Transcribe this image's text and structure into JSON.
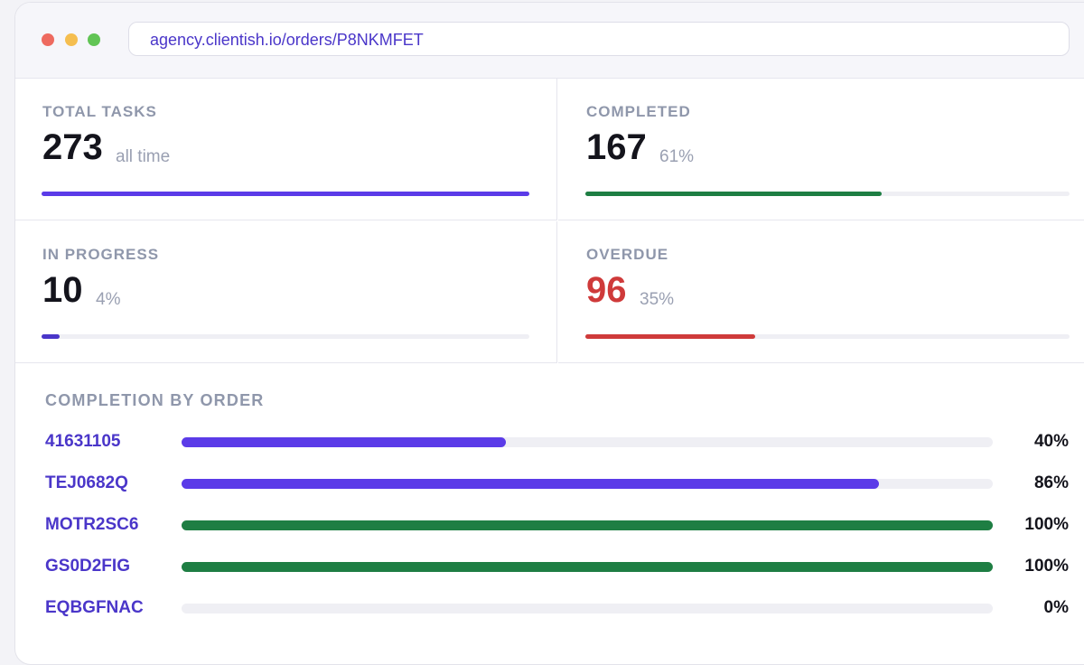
{
  "browser": {
    "url": "agency.clientish.io/orders/P8NKMFET"
  },
  "stats": [
    {
      "label": "TOTAL TASKS",
      "value": 273,
      "note": "all time",
      "color": "#5b3be8",
      "number_color": "#14141c"
    },
    {
      "label": "COMPLETED",
      "value": 167,
      "note": "61%",
      "color": "#1e7e43",
      "number_color": "#14141c"
    },
    {
      "label": "IN PROGRESS",
      "value": 10,
      "note": "4%",
      "color": "#4a36c9",
      "number_color": "#14141c"
    },
    {
      "label": "OVERDUE",
      "value": 96,
      "note": "35%",
      "color": "#cf3a3a",
      "number_color": "#cf3a3a"
    }
  ],
  "completion": {
    "title": "COMPLETION BY ORDER",
    "orders": [
      {
        "id": "41631105",
        "percent": 40,
        "percent_label": "40%",
        "color": "#5b3be8"
      },
      {
        "id": "TEJ0682Q",
        "percent": 86,
        "percent_label": "86%",
        "color": "#5b3be8"
      },
      {
        "id": "MOTR2SC6",
        "percent": 100,
        "percent_label": "100%",
        "color": "#1e7e43"
      },
      {
        "id": "GS0D2FIG",
        "percent": 100,
        "percent_label": "100%",
        "color": "#1e7e43"
      },
      {
        "id": "EQBGFNAC",
        "percent": 0,
        "percent_label": "0%",
        "color": "#5b3be8"
      }
    ]
  }
}
